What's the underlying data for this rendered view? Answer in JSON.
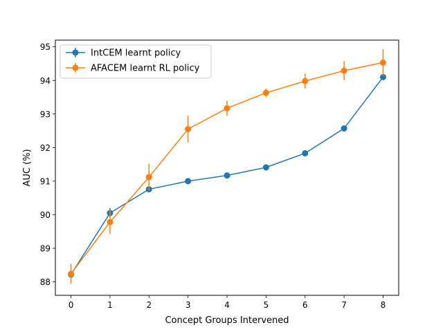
{
  "chart_data": {
    "type": "line",
    "title": "",
    "xlabel": "Concept Groups Intervened",
    "ylabel": "AUC (%)",
    "xlim": [
      -0.4,
      8.4
    ],
    "ylim": [
      87.6,
      95.2
    ],
    "x": [
      0,
      1,
      2,
      3,
      4,
      5,
      6,
      7,
      8
    ],
    "xticks": [
      0,
      1,
      2,
      3,
      4,
      5,
      6,
      7,
      8
    ],
    "yticks": [
      88,
      89,
      90,
      91,
      92,
      93,
      94,
      95
    ],
    "legend_position": "top-left",
    "grid": false,
    "series": [
      {
        "name": "IntCEM learnt policy",
        "color": "#1f77b4",
        "values": [
          88.22,
          90.05,
          90.76,
          91.0,
          91.17,
          91.41,
          91.83,
          92.57,
          94.1
        ],
        "errors": [
          0.05,
          0.15,
          0.06,
          0.04,
          0.05,
          0.05,
          0.05,
          0.05,
          0.08
        ]
      },
      {
        "name": "AFACEM learnt RL policy",
        "color": "#ff7f0e",
        "values": [
          88.24,
          89.78,
          91.12,
          92.55,
          93.17,
          93.63,
          93.98,
          94.29,
          94.53
        ],
        "errors": [
          0.3,
          0.35,
          0.4,
          0.4,
          0.22,
          0.13,
          0.22,
          0.28,
          0.4
        ]
      }
    ]
  }
}
